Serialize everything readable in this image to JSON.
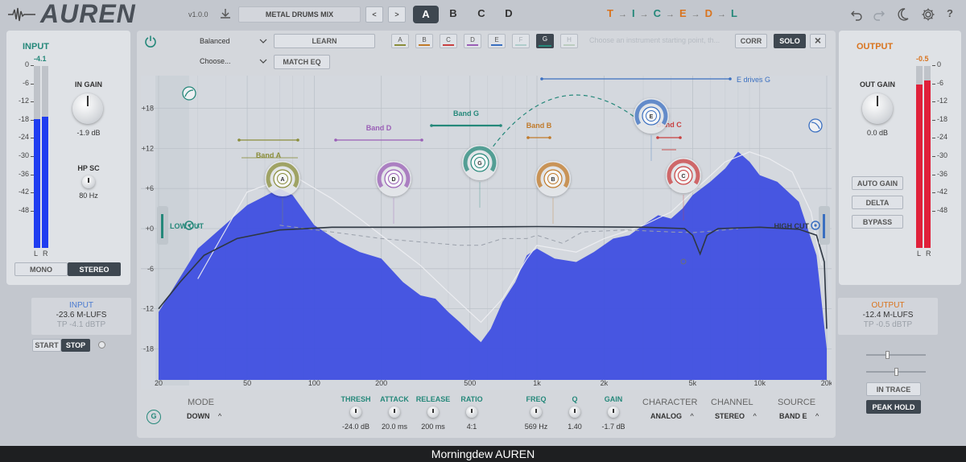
{
  "header": {
    "logo": "AUREN",
    "version": "v1.0.0",
    "preset_name": "METAL DRUMS MIX",
    "prev": "<",
    "next": ">",
    "snapshots": [
      "A",
      "B",
      "C",
      "D"
    ],
    "active_snapshot": "A",
    "chain": [
      {
        "letter": "T",
        "color": "#d9741f"
      },
      {
        "letter": "I",
        "color": "#25887a"
      },
      {
        "letter": "C",
        "color": "#25887a"
      },
      {
        "letter": "E",
        "color": "#d9741f"
      },
      {
        "letter": "D",
        "color": "#d9741f"
      },
      {
        "letter": "L",
        "color": "#25887a"
      }
    ],
    "arrow": "→",
    "help": "?"
  },
  "input": {
    "title": "INPUT",
    "peak": "-4.1",
    "scale": [
      "0",
      "-6",
      "-12",
      "-18",
      "-24",
      "-30",
      "-36",
      "-42",
      "-48"
    ],
    "meter_levels": [
      0.71,
      0.72
    ],
    "lr": [
      "L",
      "R"
    ],
    "gain_label": "IN GAIN",
    "gain_value": "-1.9 dB",
    "hpsc_label": "HP SC",
    "hpsc_value": "80 Hz",
    "mono": "MONO",
    "stereo": "STEREO"
  },
  "output": {
    "title": "OUTPUT",
    "peak": "-0.5",
    "scale": [
      "0",
      "-6",
      "-12",
      "-18",
      "-24",
      "-30",
      "-36",
      "-42",
      "-48"
    ],
    "meter_levels": [
      0.9,
      0.92
    ],
    "lr": [
      "L",
      "R"
    ],
    "gain_label": "OUT GAIN",
    "gain_value": "0.0 dB",
    "auto_gain": "AUTO GAIN",
    "delta": "DELTA",
    "bypass": "BYPASS"
  },
  "loudness": {
    "input_title": "INPUT",
    "input_lufs": "-23.6 M-LUFS",
    "input_tp": "TP -4.1 dBTP",
    "output_title": "OUTPUT",
    "output_lufs": "-12.4 M-LUFS",
    "output_tp": "TP -0.5 dBTP",
    "start": "START",
    "stop": "STOP",
    "in_trace": "IN TRACE",
    "peak_hold": "PEAK HOLD"
  },
  "toolbar": {
    "mode": "Balanced",
    "choose": "Choose...",
    "learn": "LEARN",
    "match_eq": "MATCH EQ",
    "band_tabs": [
      {
        "letter": "A",
        "color": "#8a8d3a"
      },
      {
        "letter": "B",
        "color": "#c07a2a"
      },
      {
        "letter": "C",
        "color": "#c84040"
      },
      {
        "letter": "D",
        "color": "#9a5fb6"
      },
      {
        "letter": "E",
        "color": "#3a6fc0"
      },
      {
        "letter": "F",
        "color": "#7fb8b0"
      },
      {
        "letter": "G",
        "color": "#25887a"
      },
      {
        "letter": "H",
        "color": "#9ab89a"
      }
    ],
    "active_band": "G",
    "hint": "Choose an instrument starting point, th...",
    "corr": "CORR",
    "solo": "SOLO"
  },
  "graph": {
    "y_ticks": [
      "+18",
      "+12",
      "+6",
      "+0",
      "-6",
      "-12",
      "-18"
    ],
    "x_ticks": [
      "20",
      "50",
      "100",
      "200",
      "500",
      "1k",
      "2k",
      "5k",
      "10k",
      "20k"
    ],
    "low_cut": "LOW CUT",
    "high_cut": "HIGH CUT",
    "band_labels": [
      {
        "name": "Band A",
        "color": "#8a8d3a"
      },
      {
        "name": "Band D",
        "color": "#9a5fb6"
      },
      {
        "name": "Band G",
        "color": "#25887a"
      },
      {
        "name": "Band B",
        "color": "#c07a2a"
      },
      {
        "name": "Band E",
        "color": "#3a6fc0"
      },
      {
        "name": "Band C",
        "color": "#c84040"
      }
    ],
    "sidechain_note": "E drives G",
    "nodes": [
      "A",
      "D",
      "G",
      "B",
      "E",
      "C"
    ]
  },
  "controls": {
    "band": "G",
    "mode_label": "MODE",
    "mode_value": "DOWN",
    "thresh_label": "THRESH",
    "thresh_value": "-24.0 dB",
    "attack_label": "ATTACK",
    "attack_value": "20.0 ms",
    "release_label": "RELEASE",
    "release_value": "200 ms",
    "ratio_label": "RATIO",
    "ratio_value": "4:1",
    "freq_label": "FREQ",
    "freq_value": "569 Hz",
    "q_label": "Q",
    "q_value": "1.40",
    "gain_label": "GAIN",
    "gain_value": "-1.7 dB",
    "character_label": "CHARACTER",
    "character_value": "ANALOG",
    "channel_label": "CHANNEL",
    "channel_value": "STEREO",
    "source_label": "SOURCE",
    "source_value": "BAND E"
  },
  "footer": {
    "title": "Morningdew AUREN"
  }
}
